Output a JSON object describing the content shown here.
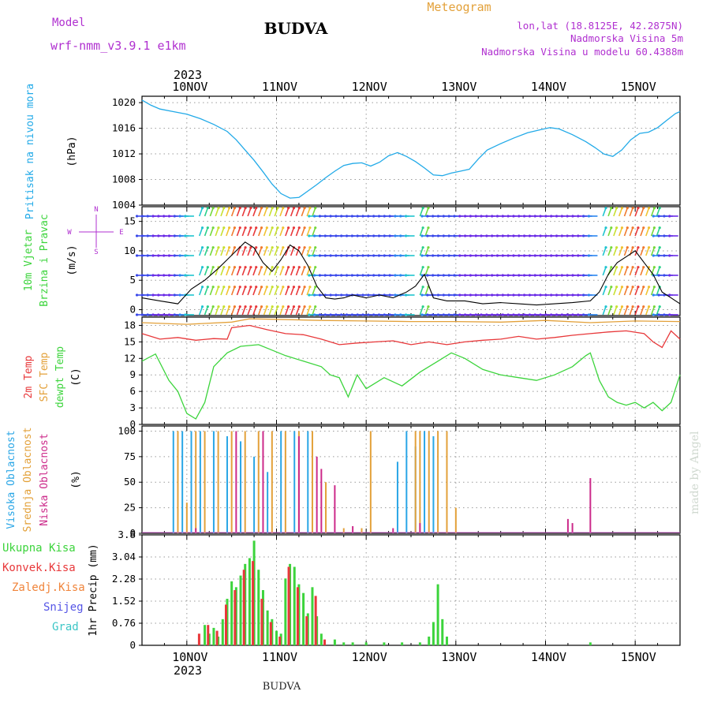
{
  "header": {
    "model_label": "Model",
    "model_name": "wrf-nmm_v3.9.1 e1km",
    "location": "BUDVA",
    "meteogram": "Meteogram",
    "lonlat": "lon,lat (18.8125E, 42.2875N)",
    "altitude": "Nadmorska Visina 5m",
    "model_altitude": "Nadmorska Visina u modelu 60.4388m",
    "footer_location": "BUDVA",
    "watermark": "made by Angel",
    "year": "2023"
  },
  "colors": {
    "pressure": "#22aae8",
    "temp2m": "#e8383a",
    "sfc_temp": "#e3a13a",
    "dewpoint": "#3cd43c",
    "high_cloud": "#2aa6e6",
    "mid_cloud": "#e3a13a",
    "low_cloud": "#cc2a8a",
    "total_rain": "#3cd43c",
    "conv_rain": "#e8383a",
    "freezing_rain": "#f0843a",
    "snow": "#5555e6",
    "hail": "#3cc6c6",
    "wind_label": "#3cd43c",
    "compass": "#b030d0",
    "purple_text": "#b030d0",
    "orange_text": "#e3a13a"
  },
  "axis": {
    "x_ticks": [
      "10NOV",
      "11NOV",
      "12NOV",
      "13NOV",
      "14NOV",
      "15NOV"
    ],
    "x_range_days": [
      9.5,
      15.5
    ]
  },
  "compass_labels": {
    "n": "N",
    "s": "S",
    "e": "E",
    "w": "W"
  },
  "panels": {
    "pressure": {
      "title": "Pritisak na nivou mora",
      "unit": "(hPa)"
    },
    "wind": {
      "title_line1": "10m Vjetar",
      "title_line2": "Brzina i Pravac",
      "unit": "(m/s)"
    },
    "temp": {
      "t1": "2m Temp",
      "t2": "SFC Temp",
      "t3": "dewpt Temp",
      "unit": "(C)"
    },
    "cloud": {
      "t1": "Visoka Oblacnost",
      "t2": "Srednja Oblacnost",
      "t3": "Niska Oblacnost",
      "unit": "(%)"
    },
    "precip": {
      "legend": [
        "Ukupna Kisa",
        "Konvek.Kisa",
        "Zaledj.Kisa",
        "Snijeg",
        "Grad"
      ],
      "unit": "1hr Precip (mm)"
    }
  },
  "chart_data": [
    {
      "type": "line",
      "ylabel": "(hPa)",
      "ylim": [
        1004,
        1021
      ],
      "y_ticks": [
        "1004",
        "1008",
        "1012",
        "1016",
        "1020"
      ],
      "series": [
        {
          "name": "Pritisak na nivou mora",
          "x": [
            9.5,
            9.6,
            9.7,
            9.85,
            10.0,
            10.15,
            10.3,
            10.45,
            10.55,
            10.65,
            10.75,
            10.85,
            10.95,
            11.05,
            11.15,
            11.25,
            11.35,
            11.45,
            11.55,
            11.65,
            11.75,
            11.85,
            11.95,
            12.05,
            12.15,
            12.25,
            12.35,
            12.45,
            12.55,
            12.65,
            12.75,
            12.85,
            12.95,
            13.05,
            13.15,
            13.25,
            13.35,
            13.5,
            13.65,
            13.8,
            13.95,
            14.05,
            14.15,
            14.3,
            14.45,
            14.55,
            14.65,
            14.75,
            14.85,
            14.95,
            15.05,
            15.15,
            15.25,
            15.35,
            15.45,
            15.5
          ],
          "y": [
            1020.4,
            1019.6,
            1019.0,
            1018.6,
            1018.2,
            1017.5,
            1016.6,
            1015.5,
            1014.2,
            1012.6,
            1011.0,
            1009.2,
            1007.3,
            1005.8,
            1005.1,
            1005.2,
            1006.2,
            1007.2,
            1008.3,
            1009.3,
            1010.2,
            1010.5,
            1010.6,
            1010.1,
            1010.7,
            1011.7,
            1012.2,
            1011.6,
            1010.8,
            1009.8,
            1008.7,
            1008.6,
            1009.0,
            1009.3,
            1009.6,
            1011.2,
            1012.6,
            1013.6,
            1014.5,
            1015.3,
            1015.8,
            1016.1,
            1015.9,
            1015.0,
            1013.9,
            1013.0,
            1012.0,
            1011.6,
            1012.6,
            1014.2,
            1015.2,
            1015.4,
            1016.1,
            1017.2,
            1018.3,
            1018.6
          ]
        }
      ]
    },
    {
      "type": "line",
      "ylabel": "(m/s)",
      "ylim": [
        -1,
        17.5
      ],
      "y_ticks": [
        "0",
        "5",
        "10",
        "15"
      ],
      "series": [
        {
          "name": "wind speed",
          "x": [
            9.5,
            9.7,
            9.9,
            10.05,
            10.2,
            10.35,
            10.45,
            10.55,
            10.65,
            10.75,
            10.85,
            10.95,
            11.05,
            11.15,
            11.25,
            11.35,
            11.45,
            11.55,
            11.65,
            11.75,
            11.85,
            12.0,
            12.15,
            12.3,
            12.45,
            12.55,
            12.65,
            12.75,
            12.9,
            13.1,
            13.3,
            13.5,
            13.7,
            13.9,
            14.1,
            14.3,
            14.5,
            14.6,
            14.7,
            14.8,
            14.9,
            15.0,
            15.1,
            15.2,
            15.3,
            15.4,
            15.5
          ],
          "y": [
            2.0,
            1.5,
            1.0,
            3.5,
            5.0,
            7.0,
            8.5,
            10.0,
            11.5,
            10.5,
            8.0,
            6.5,
            8.5,
            11.0,
            10.0,
            7.5,
            4.0,
            2.0,
            1.8,
            2.0,
            2.5,
            2.0,
            2.5,
            2.0,
            3.0,
            4.0,
            6.0,
            2.0,
            1.5,
            1.5,
            1.0,
            1.2,
            1.0,
            0.8,
            1.0,
            1.2,
            1.5,
            3.0,
            6.0,
            8.0,
            9.0,
            10.0,
            8.0,
            6.0,
            3.0,
            2.0,
            1.0
          ]
        }
      ]
    },
    {
      "type": "line",
      "ylabel": "(C)",
      "ylim": [
        0,
        19.5
      ],
      "y_ticks": [
        "0",
        "3",
        "6",
        "9",
        "12",
        "15",
        "18"
      ],
      "series": [
        {
          "name": "SFC Temp",
          "x": [
            9.5,
            10.0,
            10.5,
            10.7,
            11.0,
            11.5,
            12.0,
            12.5,
            13.0,
            13.5,
            14.0,
            14.5,
            15.0,
            15.5
          ],
          "y": [
            18.5,
            18.2,
            18.6,
            19.2,
            19.1,
            18.9,
            18.8,
            18.7,
            18.7,
            18.6,
            18.9,
            18.5,
            18.8,
            18.7
          ]
        },
        {
          "name": "2m Temp",
          "x": [
            9.5,
            9.7,
            9.9,
            10.1,
            10.3,
            10.45,
            10.5,
            10.7,
            10.9,
            11.1,
            11.3,
            11.5,
            11.7,
            11.9,
            12.1,
            12.3,
            12.5,
            12.7,
            12.9,
            13.1,
            13.3,
            13.5,
            13.7,
            13.9,
            14.1,
            14.3,
            14.5,
            14.7,
            14.9,
            15.1,
            15.2,
            15.3,
            15.4,
            15.5
          ],
          "y": [
            16.5,
            15.5,
            15.8,
            15.3,
            15.6,
            15.5,
            17.6,
            18.0,
            17.2,
            16.5,
            16.3,
            15.5,
            14.5,
            14.8,
            15.0,
            15.2,
            14.5,
            15.0,
            14.5,
            15.0,
            15.3,
            15.5,
            16.0,
            15.5,
            15.8,
            16.2,
            16.5,
            16.8,
            17.0,
            16.5,
            15.0,
            14.0,
            17.0,
            15.5
          ]
        },
        {
          "name": "dewpt Temp",
          "x": [
            9.5,
            9.65,
            9.8,
            9.9,
            10.0,
            10.1,
            10.2,
            10.3,
            10.45,
            10.6,
            10.8,
            10.95,
            11.1,
            11.3,
            11.5,
            11.6,
            11.7,
            11.8,
            11.9,
            12.0,
            12.2,
            12.4,
            12.6,
            12.8,
            12.95,
            13.1,
            13.3,
            13.5,
            13.7,
            13.9,
            14.1,
            14.3,
            14.45,
            14.5,
            14.6,
            14.7,
            14.8,
            14.9,
            15.0,
            15.1,
            15.2,
            15.3,
            15.4,
            15.5
          ],
          "y": [
            11.5,
            12.8,
            8.0,
            6.0,
            2.0,
            1.0,
            4.0,
            10.5,
            13.0,
            14.2,
            14.5,
            13.5,
            12.5,
            11.5,
            10.5,
            9.0,
            8.5,
            5.0,
            9.0,
            6.5,
            8.5,
            7.0,
            9.5,
            11.5,
            13.0,
            12.0,
            10.0,
            9.0,
            8.5,
            8.0,
            9.0,
            10.5,
            12.5,
            13.0,
            8.0,
            5.0,
            4.0,
            3.5,
            4.0,
            3.0,
            4.0,
            2.5,
            4.0,
            9.0
          ]
        }
      ]
    },
    {
      "type": "bar",
      "ylabel": "(%)",
      "ylim": [
        0,
        105
      ],
      "y_ticks": [
        "0",
        "25",
        "50",
        "75",
        "100"
      ],
      "series": [
        {
          "name": "Visoka Oblacnost",
          "x": [
            9.85,
            9.95,
            10.05,
            10.15,
            10.3,
            10.45,
            10.6,
            10.75,
            10.9,
            11.05,
            11.2,
            11.35,
            12.35,
            12.45,
            12.55,
            12.65,
            12.75
          ],
          "y": [
            100,
            100,
            100,
            100,
            100,
            95,
            90,
            75,
            60,
            100,
            100,
            100,
            70,
            100,
            85,
            100,
            95
          ]
        },
        {
          "name": "Srednja Oblacnost",
          "x": [
            9.9,
            10.0,
            10.1,
            10.2,
            10.35,
            10.5,
            10.65,
            10.8,
            10.95,
            11.1,
            11.25,
            11.4,
            11.55,
            11.75,
            11.95,
            12.05,
            12.55,
            12.6,
            12.7,
            12.8,
            12.9,
            13.0
          ],
          "y": [
            100,
            30,
            100,
            100,
            100,
            100,
            100,
            100,
            100,
            100,
            100,
            100,
            50,
            5,
            5,
            100,
            100,
            100,
            100,
            100,
            100,
            25
          ]
        },
        {
          "name": "Niska Oblacnost",
          "x": [
            10.1,
            10.55,
            10.85,
            11.25,
            11.45,
            11.5,
            11.65,
            11.85,
            12.3,
            12.6,
            14.25,
            14.3,
            14.5
          ],
          "y": [
            5,
            100,
            100,
            95,
            75,
            63,
            47,
            7,
            5,
            10,
            14,
            10,
            54
          ]
        }
      ]
    },
    {
      "type": "bar",
      "ylabel": "1hr Precip (mm)",
      "ylim": [
        0,
        3.8
      ],
      "y_ticks": [
        "0",
        "0.76",
        "1.52",
        "2.28",
        "3.04",
        "3.8"
      ],
      "series": [
        {
          "name": "Ukupna Kisa",
          "x": [
            10.2,
            10.25,
            10.3,
            10.35,
            10.4,
            10.45,
            10.5,
            10.55,
            10.6,
            10.65,
            10.7,
            10.75,
            10.8,
            10.85,
            10.9,
            10.95,
            11.0,
            11.05,
            11.1,
            11.15,
            11.2,
            11.25,
            11.3,
            11.35,
            11.4,
            11.45,
            11.5,
            11.65,
            11.75,
            11.85,
            12.0,
            12.2,
            12.4,
            12.6,
            12.7,
            12.75,
            12.8,
            12.85,
            12.9,
            14.5
          ],
          "y": [
            0.7,
            0.4,
            0.6,
            0.3,
            0.9,
            1.6,
            2.2,
            2.0,
            2.4,
            2.8,
            3.0,
            3.6,
            2.6,
            1.9,
            1.2,
            0.9,
            0.5,
            0.4,
            2.3,
            2.8,
            2.7,
            2.1,
            1.8,
            1.1,
            2.0,
            1.0,
            0.4,
            0.2,
            0.1,
            0.1,
            0.1,
            0.1,
            0.1,
            0.1,
            0.3,
            0.8,
            2.1,
            0.9,
            0.3,
            0.1
          ]
        },
        {
          "name": "Konvek.Kisa",
          "x": [
            10.15,
            10.25,
            10.35,
            10.45,
            10.55,
            10.65,
            10.75,
            10.85,
            10.95,
            11.05,
            11.15,
            11.25,
            11.35,
            11.45,
            11.55
          ],
          "y": [
            0.4,
            0.7,
            0.5,
            1.4,
            1.9,
            2.6,
            2.9,
            1.6,
            0.8,
            0.3,
            2.7,
            2.0,
            1.0,
            1.7,
            0.2
          ]
        }
      ]
    }
  ]
}
